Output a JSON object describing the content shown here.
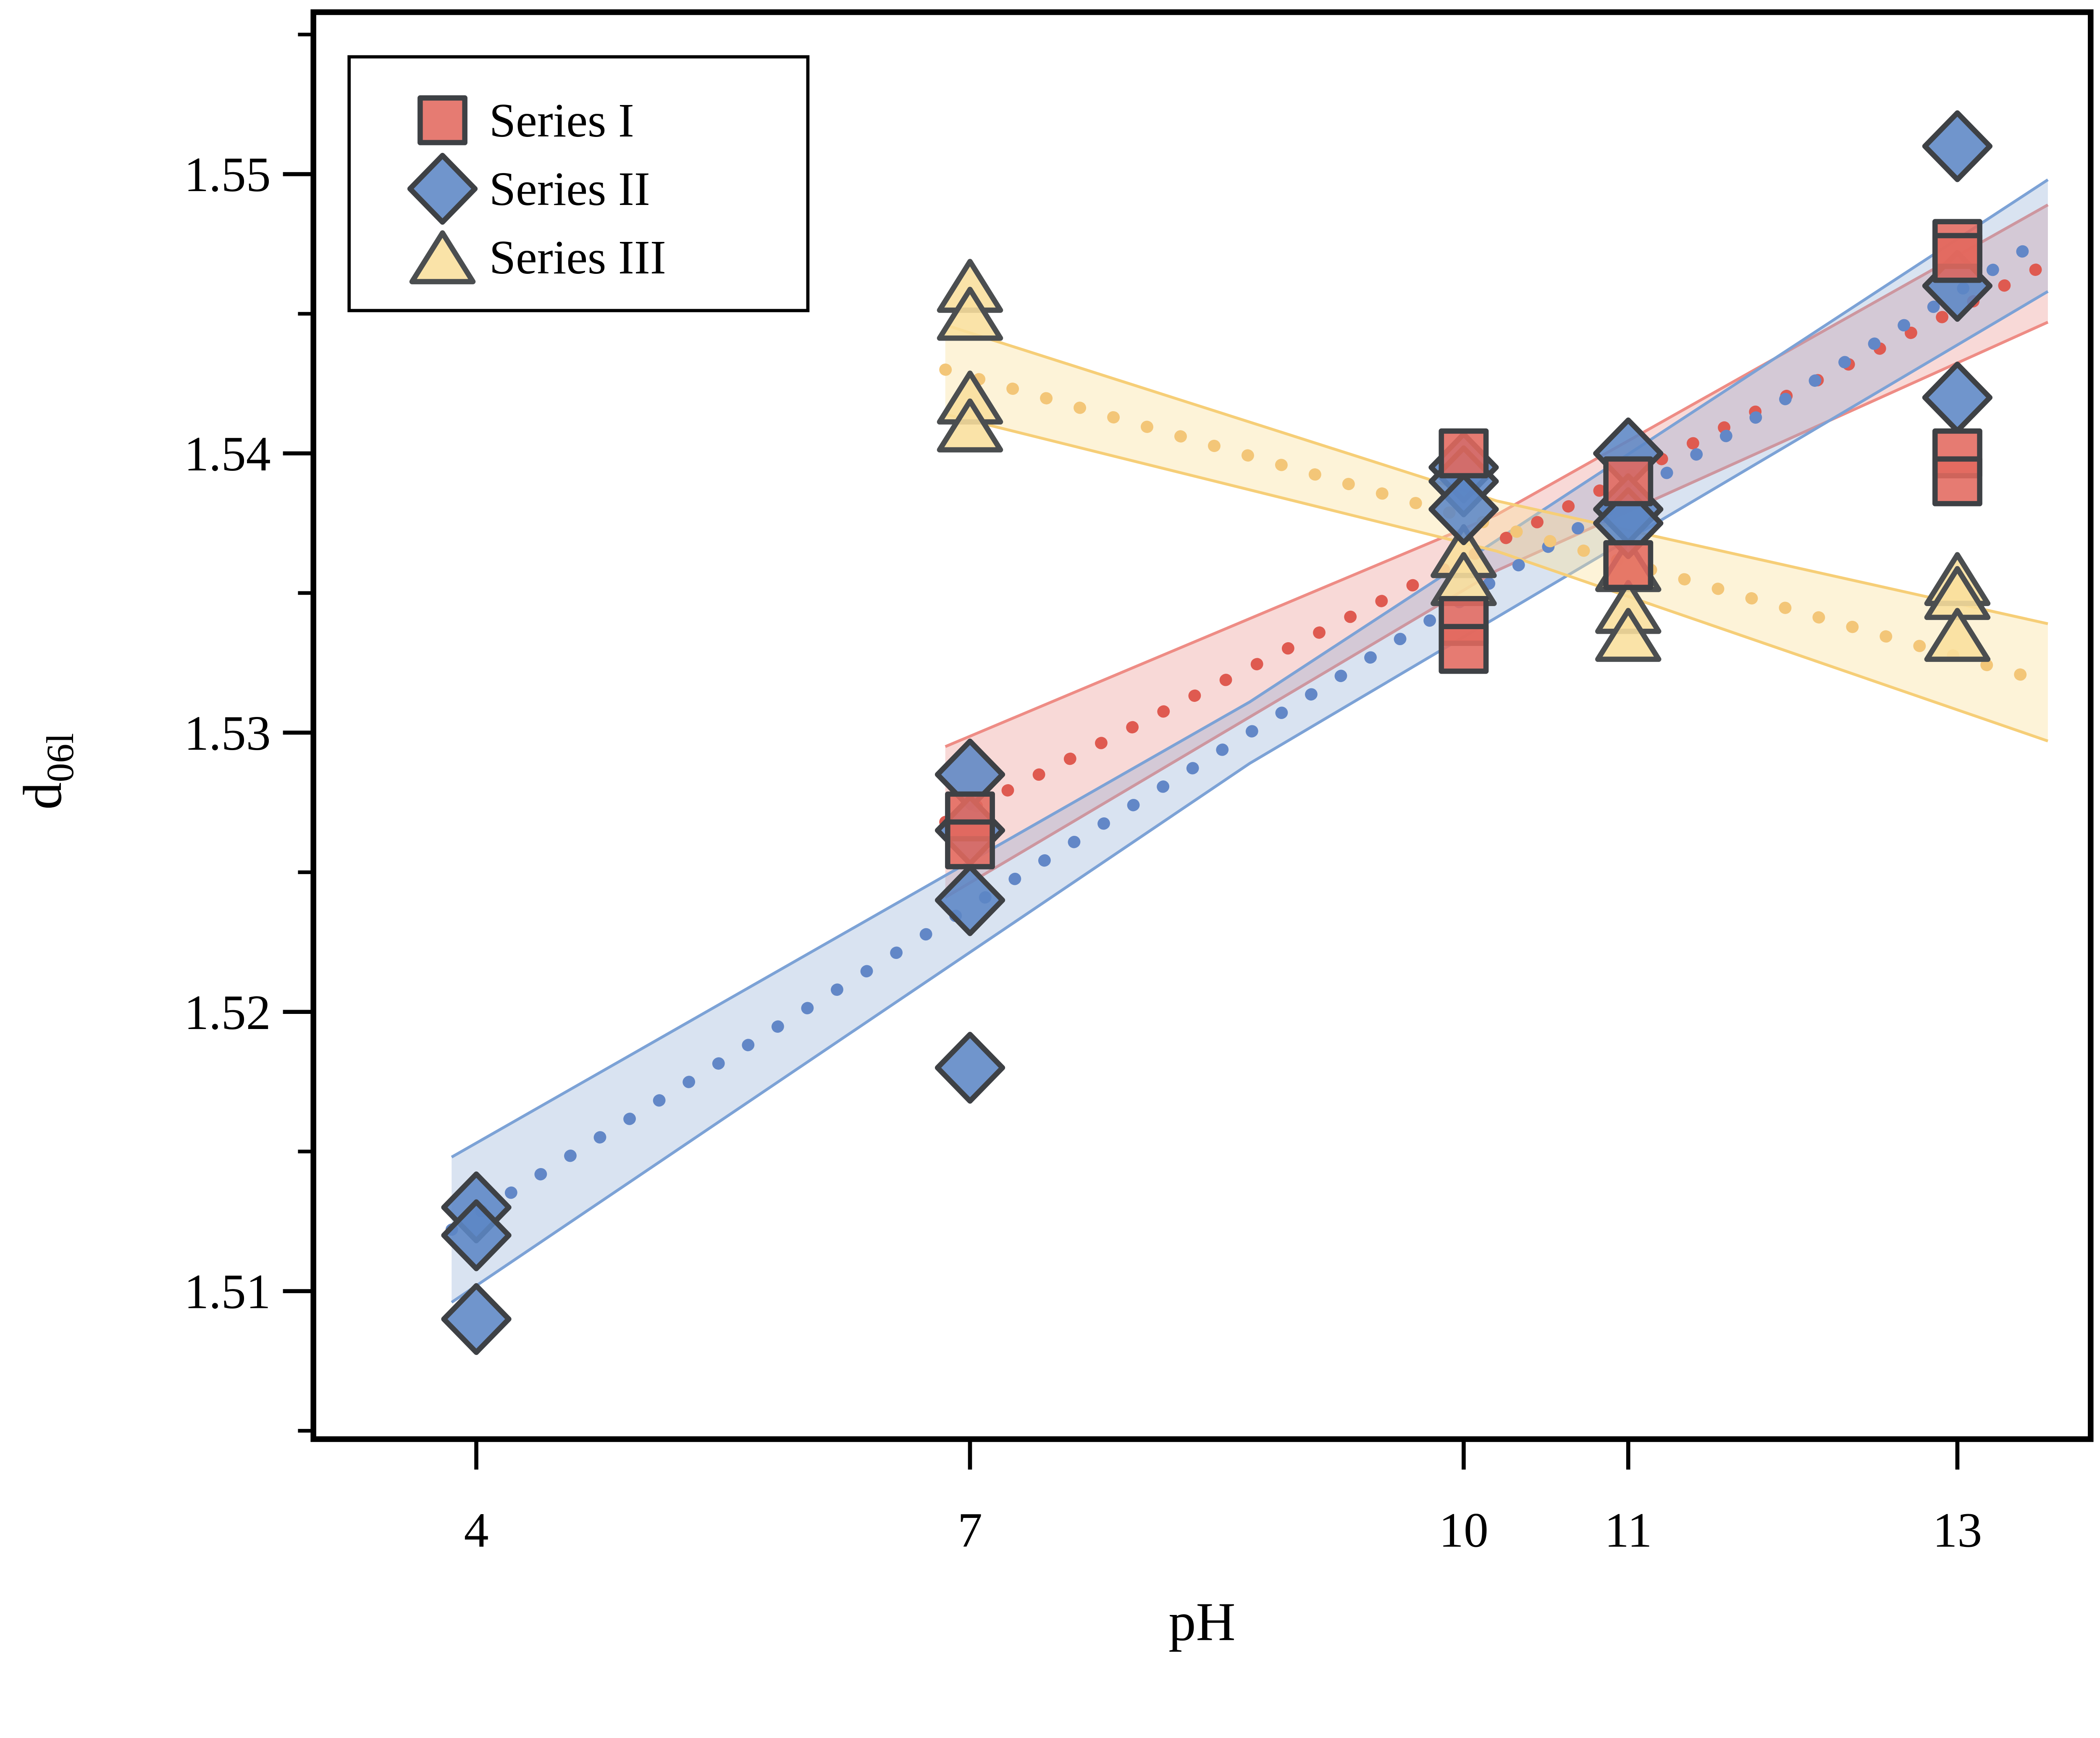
{
  "chart_data": {
    "type": "scatter",
    "title": "",
    "xlabel": "pH",
    "ylabel": "d",
    "ylabel_subscript": "06l",
    "xlim": [
      3.01,
      13.81
    ],
    "ylim": [
      1.5047,
      1.5558
    ],
    "x_ticks": [
      4,
      7,
      10,
      11,
      13
    ],
    "y_ticks_major": [
      1.51,
      1.52,
      1.53,
      1.54,
      1.55
    ],
    "y_ticks_minor": [
      1.505,
      1.515,
      1.525,
      1.535,
      1.545,
      1.555
    ],
    "grid": false,
    "legend_position": "upper-left",
    "frame_color": "#000000",
    "series": [
      {
        "name": "Series I",
        "marker": "square",
        "fill": "#e2695f",
        "edge": "#3e4145",
        "trend_color": "#df5a50",
        "band_fill": "rgba(233,130,123,0.30)",
        "band_edge": "#ee8c85",
        "points": [
          {
            "x": 7,
            "y": 1.527
          },
          {
            "x": 7,
            "y": 1.526
          },
          {
            "x": 10,
            "y": 1.54
          },
          {
            "x": 10,
            "y": 1.534
          },
          {
            "x": 10,
            "y": 1.533
          },
          {
            "x": 11,
            "y": 1.539
          },
          {
            "x": 11,
            "y": 1.536
          },
          {
            "x": 13,
            "y": 1.5475
          },
          {
            "x": 13,
            "y": 1.547
          },
          {
            "x": 13,
            "y": 1.54
          },
          {
            "x": 13,
            "y": 1.539
          }
        ],
        "trend": {
          "x": [
            6.85,
            13.55
          ],
          "y": [
            1.5268,
            1.5468
          ]
        },
        "band": {
          "x": [
            6.85,
            10.2,
            13.55
          ],
          "center": [
            1.5268,
            1.5368,
            1.5468
          ],
          "halfwidth": [
            0.0027,
            0.001,
            0.0021
          ]
        }
      },
      {
        "name": "Series II",
        "marker": "diamond",
        "fill": "#5c86c5",
        "edge": "#3e4145",
        "trend_color": "#6287c7",
        "band_fill": "rgba(141,169,214,0.33)",
        "band_edge": "#7ca2d6",
        "points": [
          {
            "x": 4,
            "y": 1.513
          },
          {
            "x": 4,
            "y": 1.512
          },
          {
            "x": 4,
            "y": 1.509
          },
          {
            "x": 7,
            "y": 1.5285
          },
          {
            "x": 7,
            "y": 1.5265
          },
          {
            "x": 7,
            "y": 1.524
          },
          {
            "x": 7,
            "y": 1.518
          },
          {
            "x": 10,
            "y": 1.5395
          },
          {
            "x": 10,
            "y": 1.539
          },
          {
            "x": 10,
            "y": 1.538
          },
          {
            "x": 11,
            "y": 1.54
          },
          {
            "x": 11,
            "y": 1.538
          },
          {
            "x": 11,
            "y": 1.5375
          },
          {
            "x": 13,
            "y": 1.551
          },
          {
            "x": 13,
            "y": 1.546
          },
          {
            "x": 13,
            "y": 1.542
          }
        ],
        "trend": {
          "x": [
            3.85,
            13.55
          ],
          "y": [
            1.5122,
            1.5478
          ]
        },
        "band": {
          "x": [
            3.85,
            8.7,
            13.55
          ],
          "center": [
            1.5122,
            1.53,
            1.5478
          ],
          "halfwidth": [
            0.0026,
            0.0011,
            0.002
          ]
        }
      },
      {
        "name": "Series III",
        "marker": "triangle",
        "fill": "#f9df9c",
        "edge": "#4b4e50",
        "trend_color": "#f3c678",
        "band_fill": "rgba(250,224,157,0.40)",
        "band_edge": "#f6ce77",
        "points": [
          {
            "x": 7,
            "y": 1.546
          },
          {
            "x": 7,
            "y": 1.545
          },
          {
            "x": 7,
            "y": 1.542
          },
          {
            "x": 7,
            "y": 1.541
          },
          {
            "x": 10,
            "y": 1.5365
          },
          {
            "x": 10,
            "y": 1.5355
          },
          {
            "x": 11,
            "y": 1.536
          },
          {
            "x": 11,
            "y": 1.5345
          },
          {
            "x": 11,
            "y": 1.5335
          },
          {
            "x": 13,
            "y": 1.5355
          },
          {
            "x": 13,
            "y": 1.535
          },
          {
            "x": 13,
            "y": 1.5335
          }
        ],
        "trend": {
          "x": [
            6.85,
            13.55
          ],
          "y": [
            1.543,
            1.5318
          ]
        },
        "band": {
          "x": [
            6.85,
            10.2,
            13.55
          ],
          "center": [
            1.543,
            1.5374,
            1.5318
          ],
          "halfwidth": [
            0.0016,
            0.0009,
            0.0021
          ]
        }
      }
    ],
    "legend_entries": [
      "Series I",
      "Series II",
      "Series III"
    ]
  }
}
